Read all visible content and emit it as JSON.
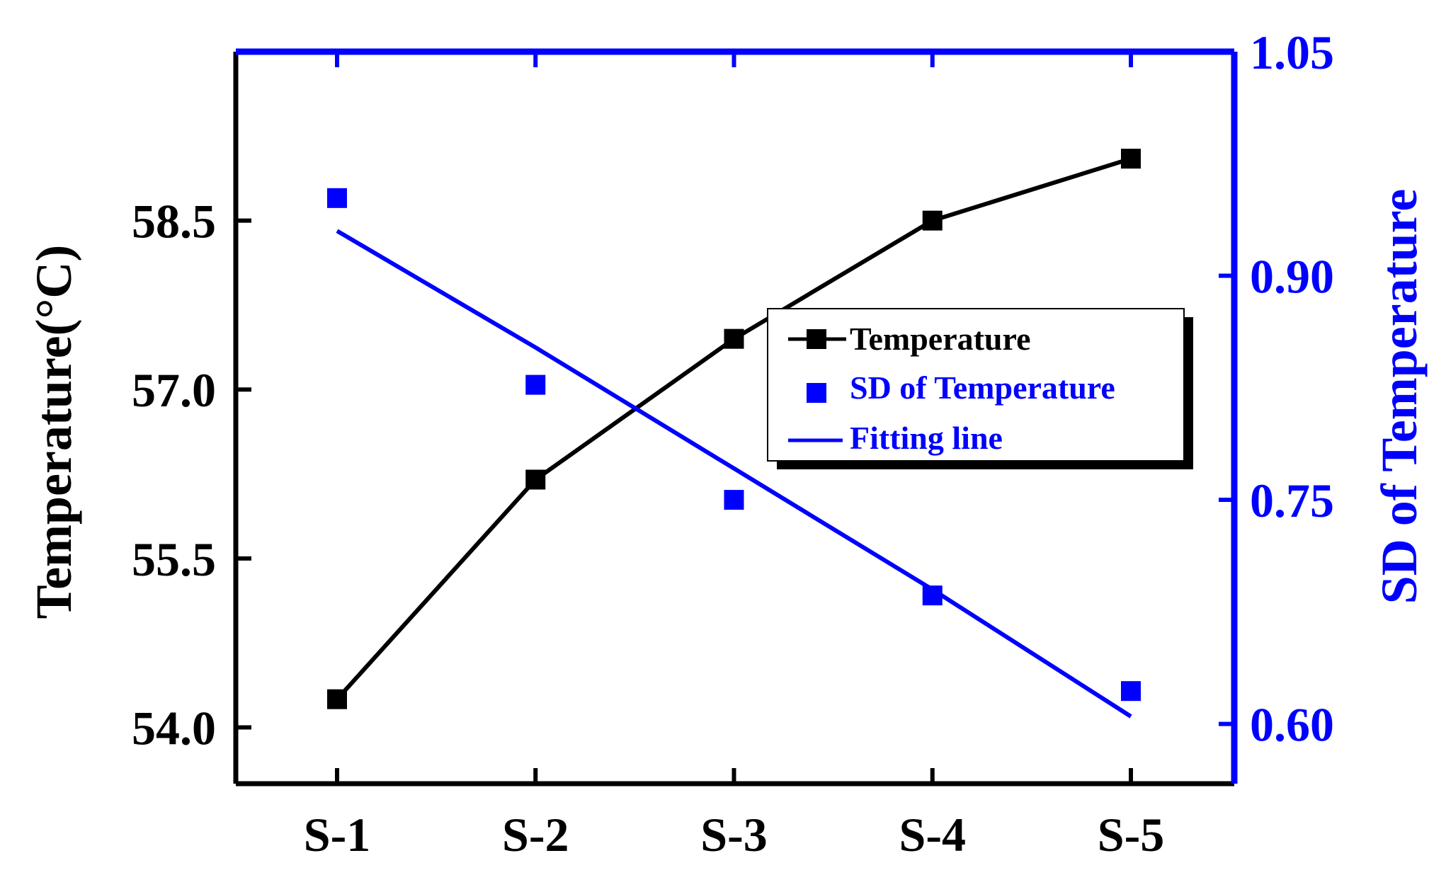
{
  "chart_data": {
    "type": "line",
    "categories": [
      "S-1",
      "S-2",
      "S-3",
      "S-4",
      "S-5"
    ],
    "y_left": {
      "label": "Temperature(°C)",
      "lim": [
        53.5,
        60.0
      ],
      "ticks": [
        54.0,
        55.5,
        57.0,
        58.5
      ],
      "tick_labels": [
        "54.0",
        "55.5",
        "57.0",
        "58.5"
      ],
      "color": "#000000"
    },
    "y_right": {
      "label": "SD of Temperature",
      "lim": [
        0.56,
        1.05
      ],
      "ticks": [
        0.6,
        0.75,
        0.9,
        1.05
      ],
      "tick_labels": [
        "0.60",
        "0.75",
        "0.90",
        "1.05"
      ],
      "color": "#0000ff"
    },
    "series": [
      {
        "name": "Temperature",
        "axis": "left",
        "style": "line+square",
        "color": "#000000",
        "values": [
          54.25,
          56.2,
          57.45,
          58.5,
          59.05
        ]
      },
      {
        "name": "SD of Temperature",
        "axis": "right",
        "style": "square",
        "color": "#0000ff",
        "values": [
          0.952,
          0.827,
          0.75,
          0.686,
          0.622
        ]
      },
      {
        "name": "Fitting line",
        "axis": "right",
        "style": "line",
        "color": "#0000ff",
        "values": [
          0.93,
          0.852,
          0.771,
          0.69,
          0.605
        ]
      }
    ],
    "legend": {
      "position": "center-right"
    },
    "grid": false
  }
}
